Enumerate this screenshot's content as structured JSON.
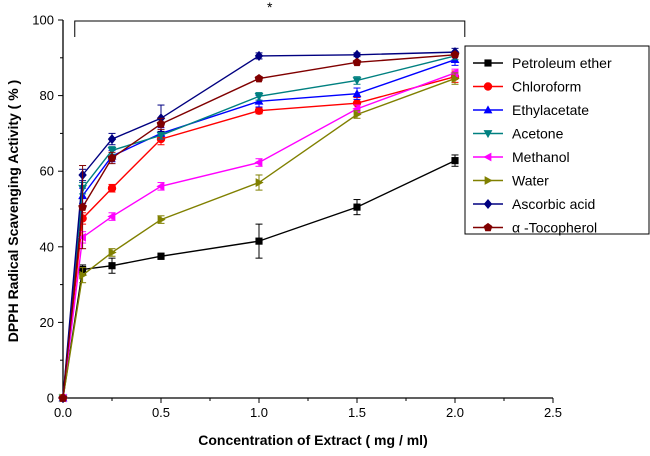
{
  "chart_data": {
    "type": "line",
    "title": "",
    "xlabel": "Concentration of Extract ( mg / ml)",
    "ylabel": "DPPH Radical Scavenging Activity ( % )",
    "xlim": [
      0,
      2.5
    ],
    "ylim": [
      0,
      100
    ],
    "x_ticks": [
      "0.0",
      "0.5",
      "1.0",
      "1.5",
      "2.0",
      "2.5"
    ],
    "y_ticks": [
      "0",
      "20",
      "40",
      "60",
      "80",
      "100"
    ],
    "grid": false,
    "legend_position": "right",
    "significance_marker": "*",
    "significance_bracket_x": [
      0.06,
      2.05
    ],
    "significance_bracket_y": 100,
    "x": [
      0,
      0.1,
      0.25,
      0.5,
      1.0,
      1.5,
      2.0
    ],
    "series": [
      {
        "name": "Petroleum ether",
        "color": "#000000",
        "marker": "square",
        "values": [
          0,
          34,
          35,
          37.5,
          41.5,
          50.5,
          62.8
        ],
        "errors": [
          0,
          1.2,
          2,
          0.8,
          4.5,
          2,
          1.5
        ]
      },
      {
        "name": "Chloroform",
        "color": "#ff0000",
        "marker": "circle",
        "values": [
          0,
          47.5,
          55.5,
          68.5,
          76,
          78,
          85
        ],
        "errors": [
          0,
          1.5,
          1,
          1.5,
          0.8,
          1.5,
          1.5
        ]
      },
      {
        "name": "Ethylacetate",
        "color": "#0000ff",
        "marker": "triangle-up",
        "values": [
          0,
          53.5,
          64,
          70,
          78.5,
          80.5,
          89.5
        ],
        "errors": [
          0,
          2,
          1.5,
          1.5,
          1.5,
          1.5,
          1.5
        ]
      },
      {
        "name": "Acetone",
        "color": "#008080",
        "marker": "triangle-down",
        "values": [
          0,
          55.5,
          65.5,
          69.5,
          79.8,
          84,
          90.5
        ],
        "errors": [
          0,
          1.5,
          1,
          1,
          1,
          1,
          1
        ]
      },
      {
        "name": "Methanol",
        "color": "#ff00ff",
        "marker": "triangle-left",
        "values": [
          0,
          42.5,
          48,
          56,
          62.3,
          76.5,
          86
        ],
        "errors": [
          0,
          1.5,
          1,
          1,
          1,
          1,
          1
        ]
      },
      {
        "name": "Water",
        "color": "#808000",
        "marker": "triangle-right",
        "values": [
          0,
          32.5,
          38.5,
          47.2,
          57,
          75,
          84.5
        ],
        "errors": [
          0,
          2,
          1,
          1,
          2,
          1,
          1.5
        ]
      },
      {
        "name": "Ascorbic acid",
        "color": "#000080",
        "marker": "diamond",
        "values": [
          0,
          59,
          68.5,
          74,
          90.5,
          90.8,
          91.5
        ],
        "errors": [
          0,
          1.5,
          1.5,
          3.5,
          0.8,
          0.5,
          1
        ]
      },
      {
        "name": "α -Tocopherol",
        "color": "#800000",
        "marker": "pentagon",
        "values": [
          0,
          50.5,
          63.5,
          72.5,
          84.5,
          88.8,
          90.8
        ],
        "errors": [
          0,
          11,
          1.5,
          1.5,
          0.5,
          0.5,
          0.5
        ]
      }
    ]
  }
}
